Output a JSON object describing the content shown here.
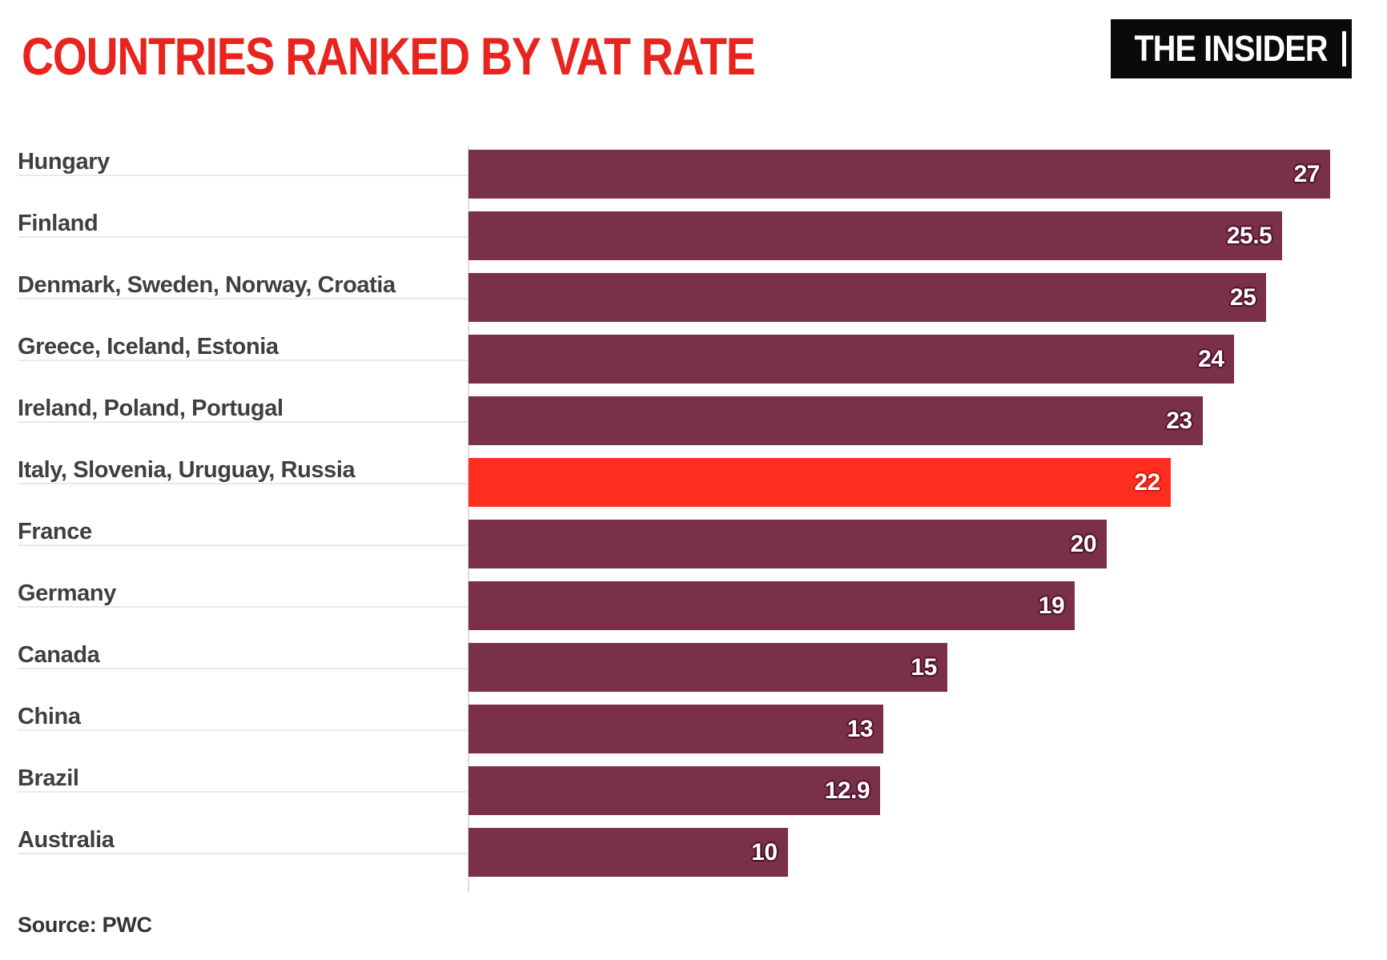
{
  "header": {
    "title": "COUNTRIES RANKED BY VAT RATE",
    "logo": "THE INSIDER"
  },
  "chart_data": {
    "type": "bar",
    "orientation": "horizontal",
    "title": "COUNTRIES RANKED BY VAT RATE",
    "categories": [
      "Hungary",
      "Finland",
      "Denmark, Sweden, Norway, Croatia",
      "Greece, Iceland, Estonia",
      "Ireland, Poland, Portugal",
      "Italy, Slovenia, Uruguay, Russia",
      "France",
      "Germany",
      "Canada",
      "China",
      "Brazil",
      "Australia"
    ],
    "values": [
      27,
      25.5,
      25,
      24,
      23,
      22,
      20,
      19,
      15,
      13,
      12.9,
      10
    ],
    "value_labels": [
      "27",
      "25.5",
      "25",
      "24",
      "23",
      "22",
      "20",
      "19",
      "15",
      "13",
      "12.9",
      "10"
    ],
    "highlighted_category": "Italy, Slovenia, Uruguay, Russia",
    "xlim": [
      0,
      27
    ],
    "xlabel": "",
    "ylabel": "",
    "legend": "none",
    "grid": "off"
  },
  "footer": {
    "source": "Source: PWC"
  },
  "colors": {
    "bar": "#7b3049",
    "bar_highlight": "#ff2e21",
    "title": "#e8241f",
    "label": "#3f3f3f",
    "value_text": "#ffffff",
    "value_halo": "#4f0f2a",
    "value_halo_highlight": "#d31507",
    "row_line": "#e9e9e9",
    "axis_line": "#dddddd",
    "logo_bg": "#0a0a0a",
    "logo_text": "#ffffff",
    "source_text": "#333333"
  }
}
